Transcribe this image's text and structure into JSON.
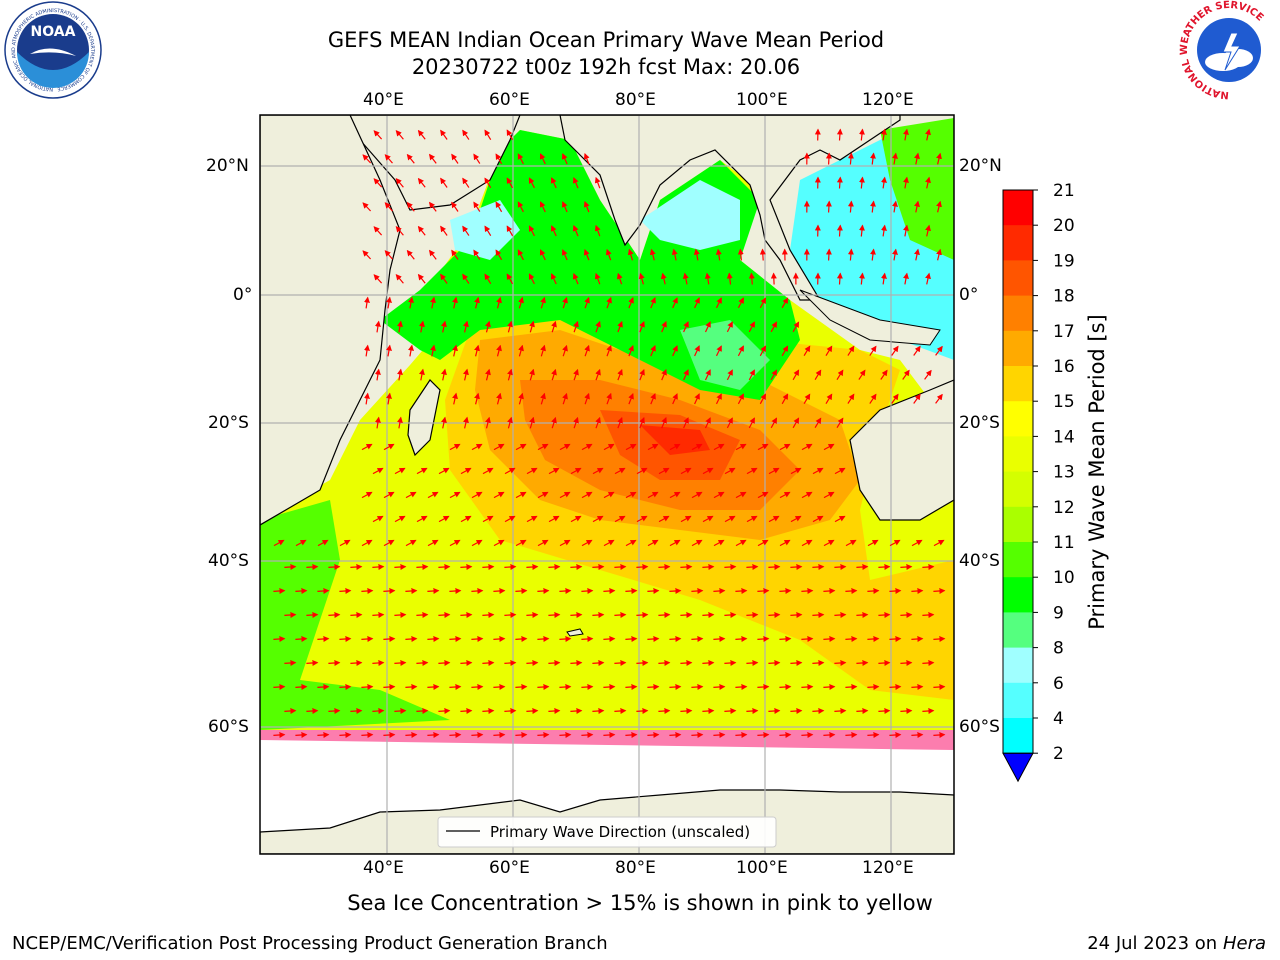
{
  "header": {
    "title": "GEFS MEAN Indian Ocean Primary Wave Mean Period",
    "subtitle": "20230722 t00z 192h fcst   Max: 20.06"
  },
  "logos": {
    "noaa_text": "NOAA",
    "noaa_ring": "NATIONAL OCEANIC AND ATMOSPHERIC ADMINISTRATION · U.S. DEPARTMENT OF COMMERCE",
    "nws_ring": "NATIONAL WEATHER SERVICE"
  },
  "map": {
    "lon_labels": [
      "40°E",
      "60°E",
      "80°E",
      "100°E",
      "120°E"
    ],
    "lat_labels": [
      "20°N",
      "0°",
      "20°S",
      "40°S",
      "60°S"
    ],
    "legend": "Primary Wave Direction (unscaled)",
    "colors": {
      "land": "#efefdc",
      "arrow": "#ff0000",
      "grid": "#b0b0b0"
    }
  },
  "colorbar": {
    "label": "Primary Wave Mean Period [s]",
    "ticks": [
      "21",
      "20",
      "19",
      "18",
      "17",
      "16",
      "15",
      "14",
      "13",
      "12",
      "11",
      "10",
      "9",
      "8",
      "6",
      "4",
      "2"
    ],
    "colors": [
      "#ff0000",
      "#ff2a00",
      "#ff5500",
      "#ff8000",
      "#ffaa00",
      "#ffd500",
      "#ffff00",
      "#eaff00",
      "#d4ff00",
      "#aaff00",
      "#55ff00",
      "#00ff00",
      "#55ff7f",
      "#a0ffff",
      "#55ffff",
      "#00ffff",
      "#0080ff",
      "#0000ff"
    ]
  },
  "note": "Sea Ice Concentration > 15% is shown in pink to yellow",
  "footer": {
    "left": "NCEP/EMC/Verification Post Processing Product Generation Branch",
    "date": "24 Jul 2023 on ",
    "machine": "Hera"
  }
}
